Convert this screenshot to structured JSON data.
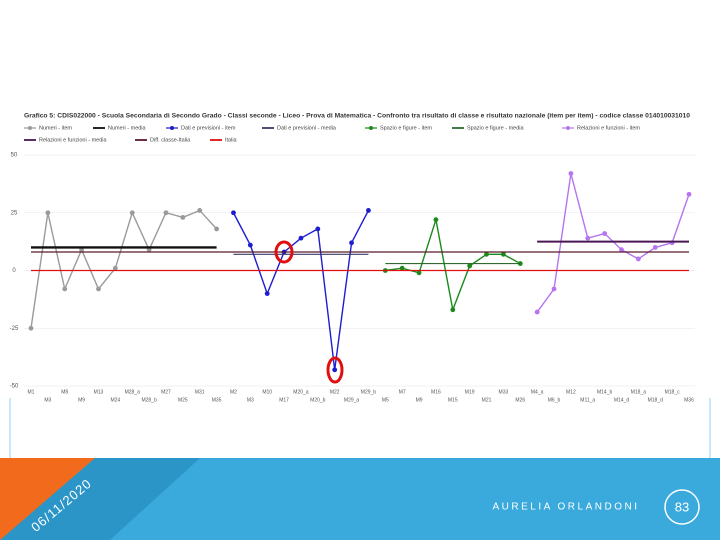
{
  "chart_data": {
    "type": "line",
    "title": "Grafico 5: CDIS022000 - Scuola Secondaria di Secondo Grado - Classi seconde - Liceo - Prova di Matematica - Confronto tra risultato di classe e risultato nazionale (item per item) - codice classe 014010031010",
    "categories": [
      "M1",
      "M3",
      "M8",
      "M9",
      "M13",
      "M24",
      "M28_a",
      "M28_b",
      "M27",
      "M25",
      "M31",
      "M35",
      "M2",
      "M3",
      "M10",
      "M17",
      "M20_a",
      "M20_b",
      "M22",
      "M29_a",
      "M29_b",
      "M5",
      "M7",
      "M9",
      "M16",
      "M15",
      "M19",
      "M21",
      "M33",
      "M26",
      "M4_a",
      "M6_b",
      "M12",
      "M11_a",
      "M14_b",
      "M14_d",
      "M18_a",
      "M18_d",
      "M18_c",
      "M36"
    ],
    "ylim": [
      -50,
      50
    ],
    "yticks": [
      -50,
      -25,
      0,
      25,
      50
    ],
    "grid": true,
    "series": [
      {
        "name": "Numeri - item",
        "color": "#9a9a9a",
        "markers": true,
        "values": [
          -25,
          25,
          -8,
          9,
          -8,
          1,
          25,
          9,
          25,
          23,
          26,
          18,
          null,
          null,
          null,
          null,
          null,
          null,
          null,
          null,
          null,
          null,
          null,
          null,
          null,
          null,
          null,
          null,
          null,
          null,
          null,
          null,
          null,
          null,
          null,
          null,
          null,
          null,
          null,
          null
        ]
      },
      {
        "name": "Numeri - media",
        "color": "#111111",
        "markers": false,
        "values": [
          10,
          10,
          10,
          10,
          10,
          10,
          10,
          10,
          10,
          10,
          10,
          10,
          null,
          null,
          null,
          null,
          null,
          null,
          null,
          null,
          null,
          null,
          null,
          null,
          null,
          null,
          null,
          null,
          null,
          null,
          null,
          null,
          null,
          null,
          null,
          null,
          null,
          null,
          null,
          null
        ]
      },
      {
        "name": "Dati e previsioni - item",
        "color": "#1c1cd0",
        "markers": true,
        "values": [
          null,
          null,
          null,
          null,
          null,
          null,
          null,
          null,
          null,
          null,
          null,
          null,
          25,
          11,
          -10,
          8,
          14,
          18,
          -43,
          12,
          26,
          null,
          null,
          null,
          null,
          null,
          null,
          null,
          null,
          null,
          null,
          null,
          null,
          null,
          null,
          null,
          null,
          null,
          null,
          null
        ]
      },
      {
        "name": "Dati e previsioni - media",
        "color": "#3a3a6a",
        "markers": false,
        "values": [
          null,
          null,
          null,
          null,
          null,
          null,
          null,
          null,
          null,
          null,
          null,
          null,
          7,
          7,
          7,
          7,
          7,
          7,
          7,
          7,
          7,
          null,
          null,
          null,
          null,
          null,
          null,
          null,
          null,
          null,
          null,
          null,
          null,
          null,
          null,
          null,
          null,
          null,
          null,
          null
        ]
      },
      {
        "name": "Spazio e figure - item",
        "color": "#1b8a1b",
        "markers": true,
        "values": [
          null,
          null,
          null,
          null,
          null,
          null,
          null,
          null,
          null,
          null,
          null,
          null,
          null,
          null,
          null,
          null,
          null,
          null,
          null,
          null,
          null,
          0,
          1,
          -1,
          22,
          -17,
          2,
          7,
          7,
          3,
          null,
          null,
          null,
          null,
          null,
          null,
          null,
          null,
          null,
          null
        ]
      },
      {
        "name": "Spazio e figure - media",
        "color": "#2f6b2f",
        "markers": false,
        "values": [
          null,
          null,
          null,
          null,
          null,
          null,
          null,
          null,
          null,
          null,
          null,
          null,
          null,
          null,
          null,
          null,
          null,
          null,
          null,
          null,
          null,
          3,
          3,
          3,
          3,
          3,
          3,
          3,
          3,
          3,
          null,
          null,
          null,
          null,
          null,
          null,
          null,
          null,
          null,
          null
        ]
      },
      {
        "name": "Relazioni e funzioni - item",
        "color": "#b674f0",
        "markers": true,
        "values": [
          null,
          null,
          null,
          null,
          null,
          null,
          null,
          null,
          null,
          null,
          null,
          null,
          null,
          null,
          null,
          null,
          null,
          null,
          null,
          null,
          null,
          null,
          null,
          null,
          null,
          null,
          null,
          null,
          null,
          null,
          -18,
          -8,
          42,
          14,
          16,
          9,
          5,
          10,
          12,
          33
        ]
      },
      {
        "name": "Relazioni e funzioni - media",
        "color": "#4a1656",
        "markers": false,
        "values": [
          null,
          null,
          null,
          null,
          null,
          null,
          null,
          null,
          null,
          null,
          null,
          null,
          null,
          null,
          null,
          null,
          null,
          null,
          null,
          null,
          null,
          null,
          null,
          null,
          null,
          null,
          null,
          null,
          null,
          null,
          12.5,
          12.5,
          12.5,
          12.5,
          12.5,
          12.5,
          12.5,
          12.5,
          12.5,
          12.5
        ]
      },
      {
        "name": "Diff. classe-Italia",
        "color": "#5a1a2a",
        "markers": false,
        "values": [
          8,
          8,
          8,
          8,
          8,
          8,
          8,
          8,
          8,
          8,
          8,
          8,
          8,
          8,
          8,
          8,
          8,
          8,
          8,
          8,
          8,
          8,
          8,
          8,
          8,
          8,
          8,
          8,
          8,
          8,
          8,
          8,
          8,
          8,
          8,
          8,
          8,
          8,
          8,
          8
        ]
      },
      {
        "name": "Italia",
        "color": "#e01010",
        "markers": false,
        "values": [
          0,
          0,
          0,
          0,
          0,
          0,
          0,
          0,
          0,
          0,
          0,
          0,
          0,
          0,
          0,
          0,
          0,
          0,
          0,
          0,
          0,
          0,
          0,
          0,
          0,
          0,
          0,
          0,
          0,
          0,
          0,
          0,
          0,
          0,
          0,
          0,
          0,
          0,
          0,
          0
        ]
      }
    ]
  },
  "slide": {
    "date": "06/11/2020",
    "author": "AURELIA ORLANDONI",
    "page_number": "83"
  }
}
